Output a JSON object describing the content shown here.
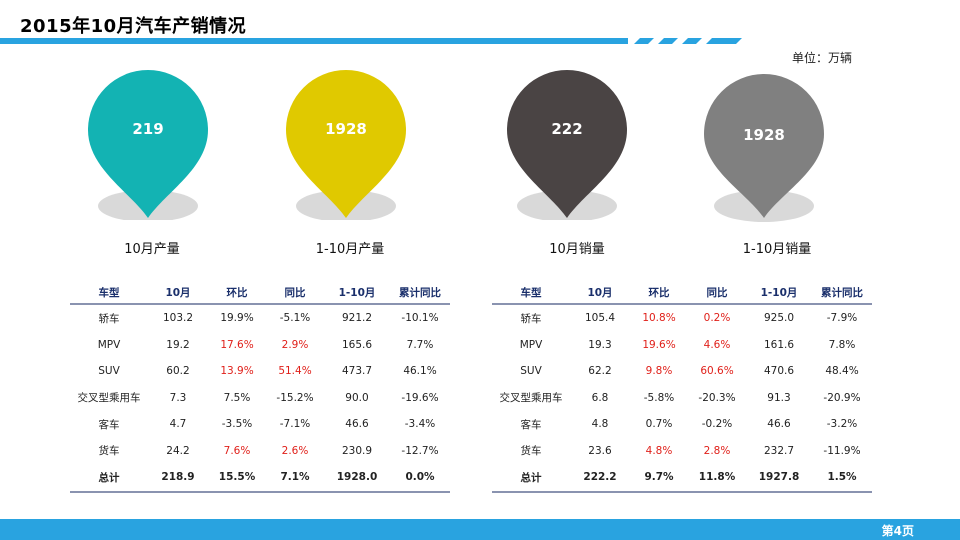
{
  "title": "2015年10月汽车产销情况",
  "unit": "单位：万辆",
  "page": "第4页",
  "colors": {
    "accent": "#29a3e0",
    "teal": "#13b3b3",
    "yellow": "#e0c900",
    "dark": "#4a4444",
    "gray": "#808080",
    "red": "#e0201a"
  },
  "pins": [
    {
      "value": "219",
      "label": "10月产量",
      "color": "#13b3b3"
    },
    {
      "value": "1928",
      "label": "1-10月产量",
      "color": "#e0c900"
    },
    {
      "value": "222",
      "label": "10月销量",
      "color": "#4a4444"
    },
    {
      "value": "1928",
      "label": "1-10月销量",
      "color": "#808080"
    }
  ],
  "tables": [
    {
      "headers": [
        "车型",
        "10月",
        "环比",
        "同比",
        "1-10月",
        "累计同比"
      ],
      "rows": [
        [
          "轿车",
          "103.2",
          "19.9%",
          "-5.1%",
          "921.2",
          "-10.1%"
        ],
        [
          "MPV",
          "19.2",
          "17.6%",
          "2.9%",
          "165.6",
          "7.7%"
        ],
        [
          "SUV",
          "60.2",
          "13.9%",
          "51.4%",
          "473.7",
          "46.1%"
        ],
        [
          "交叉型乘用车",
          "7.3",
          "7.5%",
          "-15.2%",
          "90.0",
          "-19.6%"
        ],
        [
          "客车",
          "4.7",
          "-3.5%",
          "-7.1%",
          "46.6",
          "-3.4%"
        ],
        [
          "货车",
          "24.2",
          "7.6%",
          "2.6%",
          "230.9",
          "-12.7%"
        ],
        [
          "总计",
          "218.9",
          "15.5%",
          "7.1%",
          "1928.0",
          "0.0%"
        ]
      ]
    },
    {
      "headers": [
        "车型",
        "10月",
        "环比",
        "同比",
        "1-10月",
        "累计同比"
      ],
      "rows": [
        [
          "轿车",
          "105.4",
          "10.8%",
          "0.2%",
          "925.0",
          "-7.9%"
        ],
        [
          "MPV",
          "19.3",
          "19.6%",
          "4.6%",
          "161.6",
          "7.8%"
        ],
        [
          "SUV",
          "62.2",
          "9.8%",
          "60.6%",
          "470.6",
          "48.4%"
        ],
        [
          "交叉型乘用车",
          "6.8",
          "-5.8%",
          "-20.3%",
          "91.3",
          "-20.9%"
        ],
        [
          "客车",
          "4.8",
          "0.7%",
          "-0.2%",
          "46.6",
          "-3.2%"
        ],
        [
          "货车",
          "23.6",
          "4.8%",
          "2.8%",
          "232.7",
          "-11.9%"
        ],
        [
          "总计",
          "222.2",
          "9.7%",
          "11.8%",
          "1927.8",
          "1.5%"
        ]
      ]
    }
  ]
}
